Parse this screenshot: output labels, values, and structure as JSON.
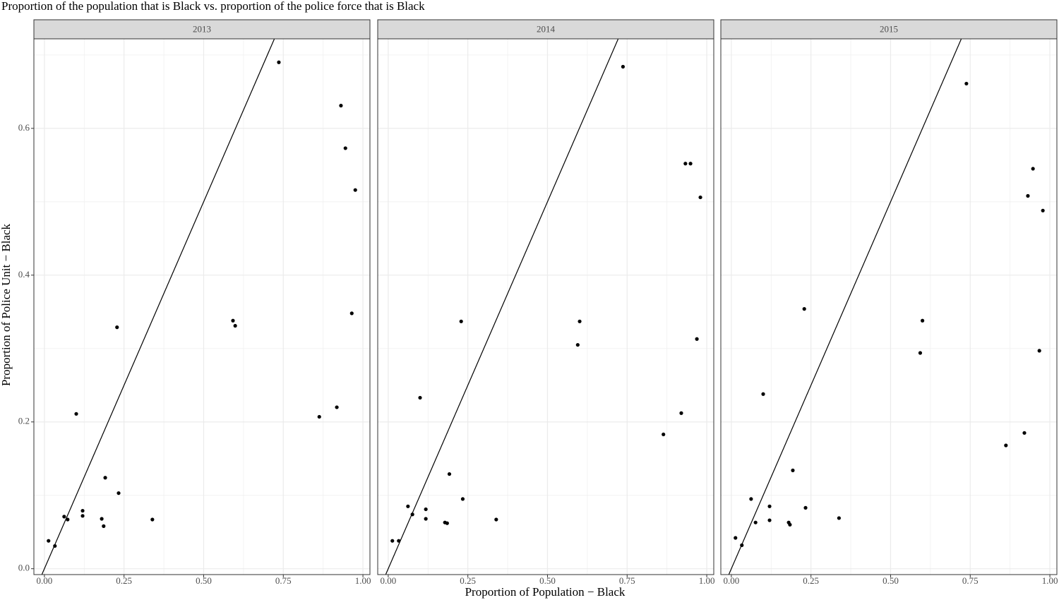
{
  "title": "Proportion of the population that is Black vs. proportion of the police force that is Black",
  "x_label": "Proportion of Population − Black",
  "y_label": "Proportion of Police Unit − Black",
  "chart_data": [
    {
      "type": "scatter",
      "facet": "2013",
      "color": "#000000",
      "identity_line": true,
      "grid": true,
      "x": [
        0.013,
        0.033,
        0.062,
        0.073,
        0.1,
        0.12,
        0.12,
        0.18,
        0.186,
        0.191,
        0.228,
        0.233,
        0.339,
        0.592,
        0.599,
        0.736,
        0.863,
        0.918,
        0.931,
        0.945,
        0.965,
        0.976
      ],
      "y": [
        0.038,
        0.031,
        0.071,
        0.067,
        0.211,
        0.079,
        0.072,
        0.068,
        0.058,
        0.124,
        0.329,
        0.103,
        0.067,
        0.338,
        0.331,
        0.69,
        0.207,
        0.22,
        0.631,
        0.573,
        0.348,
        0.516
      ],
      "xlim": [
        -0.033,
        1.022
      ],
      "ylim": [
        -0.008,
        0.722
      ],
      "xticks": [
        {
          "value": 0,
          "label": "0.00"
        },
        {
          "value": 0.25,
          "label": "0.25"
        },
        {
          "value": 0.5,
          "label": "0.50"
        },
        {
          "value": 0.75,
          "label": "0.75"
        },
        {
          "value": 1,
          "label": "1.00"
        }
      ],
      "yticks": [
        {
          "value": 0,
          "label": "0.0"
        },
        0.2,
        0.4,
        0.6
      ]
    },
    {
      "type": "scatter",
      "facet": "2014",
      "color": "#000000",
      "identity_line": true,
      "grid": true,
      "x": [
        0.013,
        0.033,
        0.062,
        0.076,
        0.1,
        0.118,
        0.118,
        0.178,
        0.185,
        0.192,
        0.229,
        0.234,
        0.339,
        0.595,
        0.601,
        0.737,
        0.864,
        0.92,
        0.933,
        0.949,
        0.969,
        0.98
      ],
      "y": [
        0.038,
        0.038,
        0.085,
        0.074,
        0.233,
        0.081,
        0.068,
        0.063,
        0.062,
        0.129,
        0.337,
        0.095,
        0.067,
        0.305,
        0.337,
        0.684,
        0.183,
        0.212,
        0.552,
        0.552,
        0.313,
        0.506
      ],
      "xlim": [
        -0.033,
        1.022
      ],
      "ylim": [
        -0.008,
        0.722
      ],
      "xticks": [
        {
          "value": 0,
          "label": "0.00"
        },
        {
          "value": 0.25,
          "label": "0.25"
        },
        {
          "value": 0.5,
          "label": "0.50"
        },
        {
          "value": 0.75,
          "label": "0.75"
        },
        {
          "value": 1,
          "label": "1.00"
        }
      ],
      "yticks": [
        {
          "value": 0,
          "label": "0.0"
        },
        0.2,
        0.4,
        0.6
      ]
    },
    {
      "type": "scatter",
      "facet": "2015",
      "color": "#000000",
      "identity_line": true,
      "grid": true,
      "x": [
        0.013,
        0.033,
        0.062,
        0.076,
        0.1,
        0.12,
        0.12,
        0.18,
        0.184,
        0.193,
        0.229,
        0.233,
        0.338,
        0.593,
        0.6,
        0.738,
        0.862,
        0.92,
        0.931,
        0.947,
        0.967,
        0.978
      ],
      "y": [
        0.042,
        0.032,
        0.095,
        0.063,
        0.238,
        0.085,
        0.066,
        0.063,
        0.06,
        0.134,
        0.354,
        0.083,
        0.069,
        0.294,
        0.338,
        0.661,
        0.168,
        0.185,
        0.508,
        0.545,
        0.297,
        0.488
      ],
      "xlim": [
        -0.033,
        1.022
      ],
      "ylim": [
        -0.008,
        0.722
      ],
      "xticks": [
        {
          "value": 0,
          "label": "0.00"
        },
        {
          "value": 0.25,
          "label": "0.25"
        },
        {
          "value": 0.5,
          "label": "0.50"
        },
        {
          "value": 0.75,
          "label": "0.75"
        },
        {
          "value": 1,
          "label": "1.00"
        }
      ],
      "yticks": [
        {
          "value": 0,
          "label": "0.0"
        },
        0.2,
        0.4,
        0.6
      ]
    }
  ]
}
